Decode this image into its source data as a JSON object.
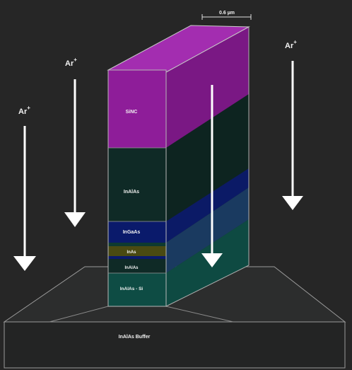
{
  "ion_label": "Ar",
  "ion_charge": "+",
  "scale_bar": "0.6 µm",
  "layers": {
    "sinc": "SiNC",
    "inalas_top": "InAlAs",
    "ingaas": "InGaAs",
    "inas": "InAs",
    "inalas_mid": "InAlAs",
    "inalas_si": "InAlAs - Si",
    "buffer": "InAlAs Buffer"
  },
  "colors": {
    "background": "#262626",
    "sinc": "#8e1d99",
    "inalas": "#0f2a26",
    "ingaas": "#0a1a6b",
    "inas": "#4a4a12",
    "inalas_si": "#0e4c44",
    "substrate": "#2a2b2b",
    "arrow": "#ffffff"
  }
}
